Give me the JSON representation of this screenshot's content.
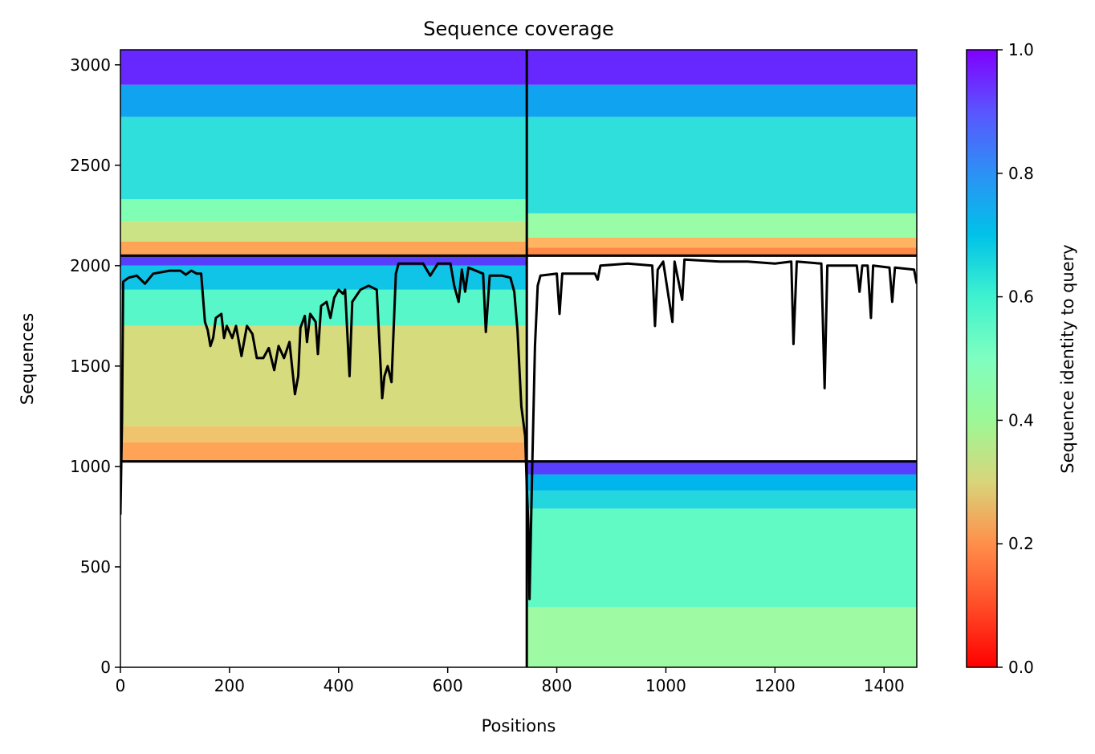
{
  "chart_data": {
    "type": "heatmap",
    "title": "Sequence coverage",
    "xlabel": "Positions",
    "ylabel": "Sequences",
    "xlim": [
      0,
      1460
    ],
    "ylim": [
      0,
      3075
    ],
    "x_ticks": [
      0,
      200,
      400,
      600,
      800,
      1000,
      1200,
      1400
    ],
    "y_ticks": [
      0,
      500,
      1000,
      1500,
      2000,
      2500,
      3000
    ],
    "colorbar": {
      "label": "Sequence identity to query",
      "colormap": "rainbow_r",
      "range": [
        0.0,
        1.0
      ],
      "ticks": [
        0.0,
        0.2,
        0.4,
        0.6,
        0.8,
        1.0
      ]
    },
    "domain_boundaries": {
      "x_split": 745,
      "y_splits": [
        1025,
        2050
      ]
    },
    "blocks": [
      {
        "region": "top-left",
        "x": [
          0,
          745
        ],
        "y": [
          2050,
          3075
        ],
        "identity_bands": [
          {
            "y": [
              3075,
              2900
            ],
            "identity": 0.95
          },
          {
            "y": [
              2900,
              2740
            ],
            "identity": 0.78
          },
          {
            "y": [
              2740,
              2330
            ],
            "identity": 0.66
          },
          {
            "y": [
              2330,
              2220
            ],
            "identity": 0.5
          },
          {
            "y": [
              2220,
              2120
            ],
            "identity": 0.35
          },
          {
            "y": [
              2120,
              2050
            ],
            "identity": 0.22
          }
        ]
      },
      {
        "region": "top-right",
        "x": [
          745,
          1460
        ],
        "y": [
          2050,
          3075
        ],
        "identity_bands": [
          {
            "y": [
              3075,
              2900
            ],
            "identity": 0.95
          },
          {
            "y": [
              2900,
              2740
            ],
            "identity": 0.78
          },
          {
            "y": [
              2740,
              2260
            ],
            "identity": 0.66
          },
          {
            "y": [
              2260,
              2140
            ],
            "identity": 0.45
          },
          {
            "y": [
              2140,
              2090
            ],
            "identity": 0.25
          },
          {
            "y": [
              2090,
              2050
            ],
            "identity": 0.18
          }
        ]
      },
      {
        "region": "middle-left",
        "x": [
          0,
          745
        ],
        "y": [
          1025,
          2050
        ],
        "identity_bands": [
          {
            "y": [
              2050,
              2000
            ],
            "identity": 0.92
          },
          {
            "y": [
              2000,
              1880
            ],
            "identity": 0.72
          },
          {
            "y": [
              1880,
              1700
            ],
            "identity": 0.58
          },
          {
            "y": [
              1700,
              1200
            ],
            "identity": 0.33
          },
          {
            "y": [
              1200,
              1120
            ],
            "identity": 0.28
          },
          {
            "y": [
              1120,
              1025
            ],
            "identity": 0.22
          }
        ]
      },
      {
        "region": "bottom-right",
        "x": [
          745,
          1460
        ],
        "y": [
          0,
          1025
        ],
        "identity_bands": [
          {
            "y": [
              1025,
              960
            ],
            "identity": 0.92
          },
          {
            "y": [
              960,
              880
            ],
            "identity": 0.75
          },
          {
            "y": [
              880,
              790
            ],
            "identity": 0.68
          },
          {
            "y": [
              790,
              300
            ],
            "identity": 0.56
          },
          {
            "y": [
              300,
              0
            ],
            "identity": 0.44
          }
        ]
      }
    ],
    "coverage_line": {
      "name": "coverage",
      "points": [
        [
          0,
          760
        ],
        [
          3,
          1230
        ],
        [
          5,
          1920
        ],
        [
          15,
          1940
        ],
        [
          30,
          1950
        ],
        [
          45,
          1910
        ],
        [
          60,
          1960
        ],
        [
          90,
          1975
        ],
        [
          110,
          1975
        ],
        [
          120,
          1955
        ],
        [
          130,
          1975
        ],
        [
          140,
          1960
        ],
        [
          148,
          1960
        ],
        [
          155,
          1720
        ],
        [
          160,
          1680
        ],
        [
          165,
          1600
        ],
        [
          170,
          1640
        ],
        [
          175,
          1740
        ],
        [
          185,
          1760
        ],
        [
          190,
          1640
        ],
        [
          195,
          1700
        ],
        [
          205,
          1640
        ],
        [
          212,
          1700
        ],
        [
          222,
          1550
        ],
        [
          232,
          1700
        ],
        [
          242,
          1660
        ],
        [
          250,
          1540
        ],
        [
          262,
          1540
        ],
        [
          272,
          1590
        ],
        [
          282,
          1480
        ],
        [
          290,
          1600
        ],
        [
          300,
          1540
        ],
        [
          310,
          1620
        ],
        [
          320,
          1360
        ],
        [
          326,
          1450
        ],
        [
          330,
          1690
        ],
        [
          338,
          1750
        ],
        [
          342,
          1620
        ],
        [
          348,
          1760
        ],
        [
          358,
          1720
        ],
        [
          362,
          1560
        ],
        [
          368,
          1800
        ],
        [
          378,
          1820
        ],
        [
          385,
          1740
        ],
        [
          392,
          1840
        ],
        [
          400,
          1880
        ],
        [
          408,
          1860
        ],
        [
          412,
          1880
        ],
        [
          420,
          1450
        ],
        [
          425,
          1820
        ],
        [
          440,
          1880
        ],
        [
          455,
          1900
        ],
        [
          470,
          1880
        ],
        [
          480,
          1340
        ],
        [
          484,
          1450
        ],
        [
          490,
          1500
        ],
        [
          497,
          1420
        ],
        [
          505,
          1960
        ],
        [
          510,
          2010
        ],
        [
          530,
          2010
        ],
        [
          555,
          2010
        ],
        [
          568,
          1950
        ],
        [
          582,
          2010
        ],
        [
          605,
          2010
        ],
        [
          612,
          1900
        ],
        [
          620,
          1820
        ],
        [
          626,
          1980
        ],
        [
          632,
          1870
        ],
        [
          638,
          1990
        ],
        [
          665,
          1960
        ],
        [
          670,
          1670
        ],
        [
          677,
          1950
        ],
        [
          700,
          1950
        ],
        [
          715,
          1940
        ],
        [
          722,
          1870
        ],
        [
          728,
          1680
        ],
        [
          735,
          1300
        ],
        [
          742,
          1150
        ],
        [
          745,
          900
        ],
        [
          748,
          700
        ],
        [
          750,
          340
        ],
        [
          755,
          1000
        ],
        [
          760,
          1600
        ],
        [
          765,
          1900
        ],
        [
          770,
          1950
        ],
        [
          800,
          1960
        ],
        [
          805,
          1760
        ],
        [
          810,
          1960
        ],
        [
          870,
          1960
        ],
        [
          875,
          1930
        ],
        [
          880,
          2000
        ],
        [
          930,
          2010
        ],
        [
          975,
          2000
        ],
        [
          980,
          1700
        ],
        [
          985,
          1980
        ],
        [
          995,
          2020
        ],
        [
          1012,
          1720
        ],
        [
          1016,
          2020
        ],
        [
          1030,
          1830
        ],
        [
          1034,
          2030
        ],
        [
          1100,
          2020
        ],
        [
          1150,
          2020
        ],
        [
          1200,
          2010
        ],
        [
          1230,
          2020
        ],
        [
          1234,
          1610
        ],
        [
          1240,
          2020
        ],
        [
          1285,
          2010
        ],
        [
          1291,
          1390
        ],
        [
          1296,
          2000
        ],
        [
          1350,
          2000
        ],
        [
          1355,
          1870
        ],
        [
          1360,
          2000
        ],
        [
          1370,
          2000
        ],
        [
          1376,
          1740
        ],
        [
          1380,
          2000
        ],
        [
          1410,
          1990
        ],
        [
          1415,
          1820
        ],
        [
          1420,
          1990
        ],
        [
          1455,
          1980
        ],
        [
          1460,
          1910
        ]
      ]
    }
  }
}
